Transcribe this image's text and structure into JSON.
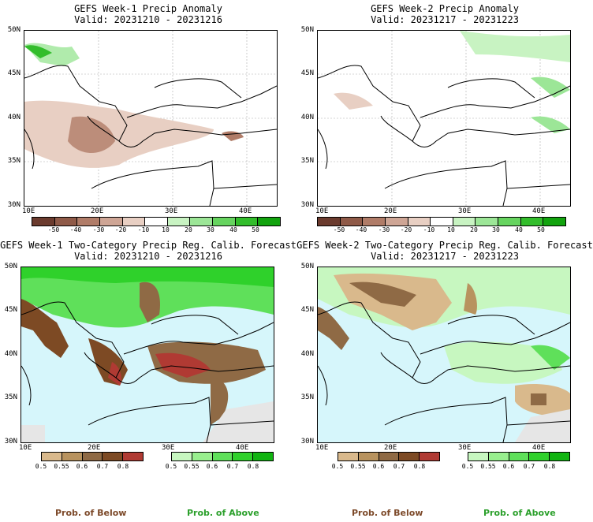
{
  "panels": [
    {
      "title": "GEFS Week-1 Precip Anomaly",
      "valid": "Valid: 20231210 - 20231216"
    },
    {
      "title": "GEFS Week-2 Precip Anomaly",
      "valid": "Valid: 20231217 - 20231223"
    },
    {
      "title": "GEFS Week-1 Two-Category Precip Reg. Calib. Forecast",
      "valid": "Valid: 20231210 - 20231216"
    },
    {
      "title": "GEFS Week-2 Two-Category Precip Reg. Calib. Forecast",
      "valid": "Valid: 20231217 - 20231223"
    }
  ],
  "axes": {
    "lat_labels": [
      "50N",
      "45N",
      "40N",
      "35N",
      "30N"
    ],
    "lon_labels": [
      "10E",
      "20E",
      "30E",
      "40E"
    ]
  },
  "anomaly_colorbar": {
    "ticks": [
      "-50",
      "-40",
      "-30",
      "-20",
      "-10",
      "10",
      "20",
      "30",
      "40",
      "50"
    ],
    "colors": [
      "#6b3b2e",
      "#8f5a48",
      "#b07c68",
      "#cea595",
      "#e8cfc3",
      "#ffffff",
      "#c8f3c2",
      "#9ce697",
      "#66d45f",
      "#32bd2b",
      "#12a30e"
    ]
  },
  "prob_colorbar": {
    "below_ticks": [
      "0.5",
      "0.55",
      "0.6",
      "0.7",
      "0.8"
    ],
    "below_colors": [
      "#d9b98c",
      "#b8935f",
      "#8f6a45",
      "#7d4a24",
      "#b03a33"
    ],
    "above_ticks": [
      "0.5",
      "0.55",
      "0.6",
      "0.7",
      "0.8"
    ],
    "above_colors": [
      "#c7f7c0",
      "#98ef8e",
      "#5fe05a",
      "#2fd12b",
      "#11b411"
    ]
  },
  "legend": {
    "below_label": "Prob. of Below",
    "above_label": "Prob. of Above",
    "below_color": "#7d4a2a",
    "above_color": "#2ca02c"
  },
  "ocean_color": "#d6f6fb",
  "nodata_color": "#e6e6e6"
}
